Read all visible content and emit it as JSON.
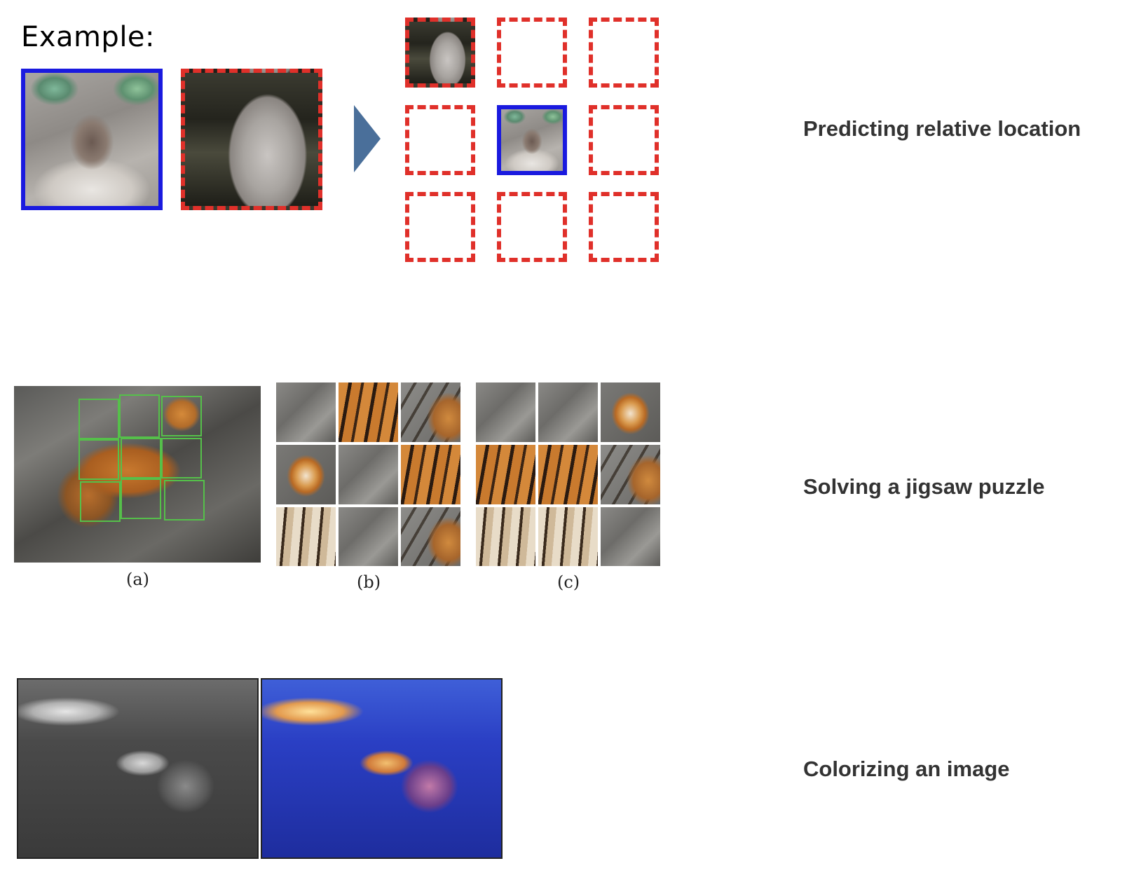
{
  "example": {
    "label": "Example:"
  },
  "rows": {
    "relative_location": "Predicting relative location",
    "jigsaw": "Solving a jigsaw puzzle",
    "colorize": "Colorizing an image"
  },
  "jigsaw_captions": {
    "a": "(a)",
    "b": "(b)",
    "c": "(c)"
  },
  "colors": {
    "center_patch_border": "#1a1adf",
    "candidate_border": "#e0302a",
    "arrow": "#4a6f9a",
    "grid_overlay": "#55c04a"
  }
}
